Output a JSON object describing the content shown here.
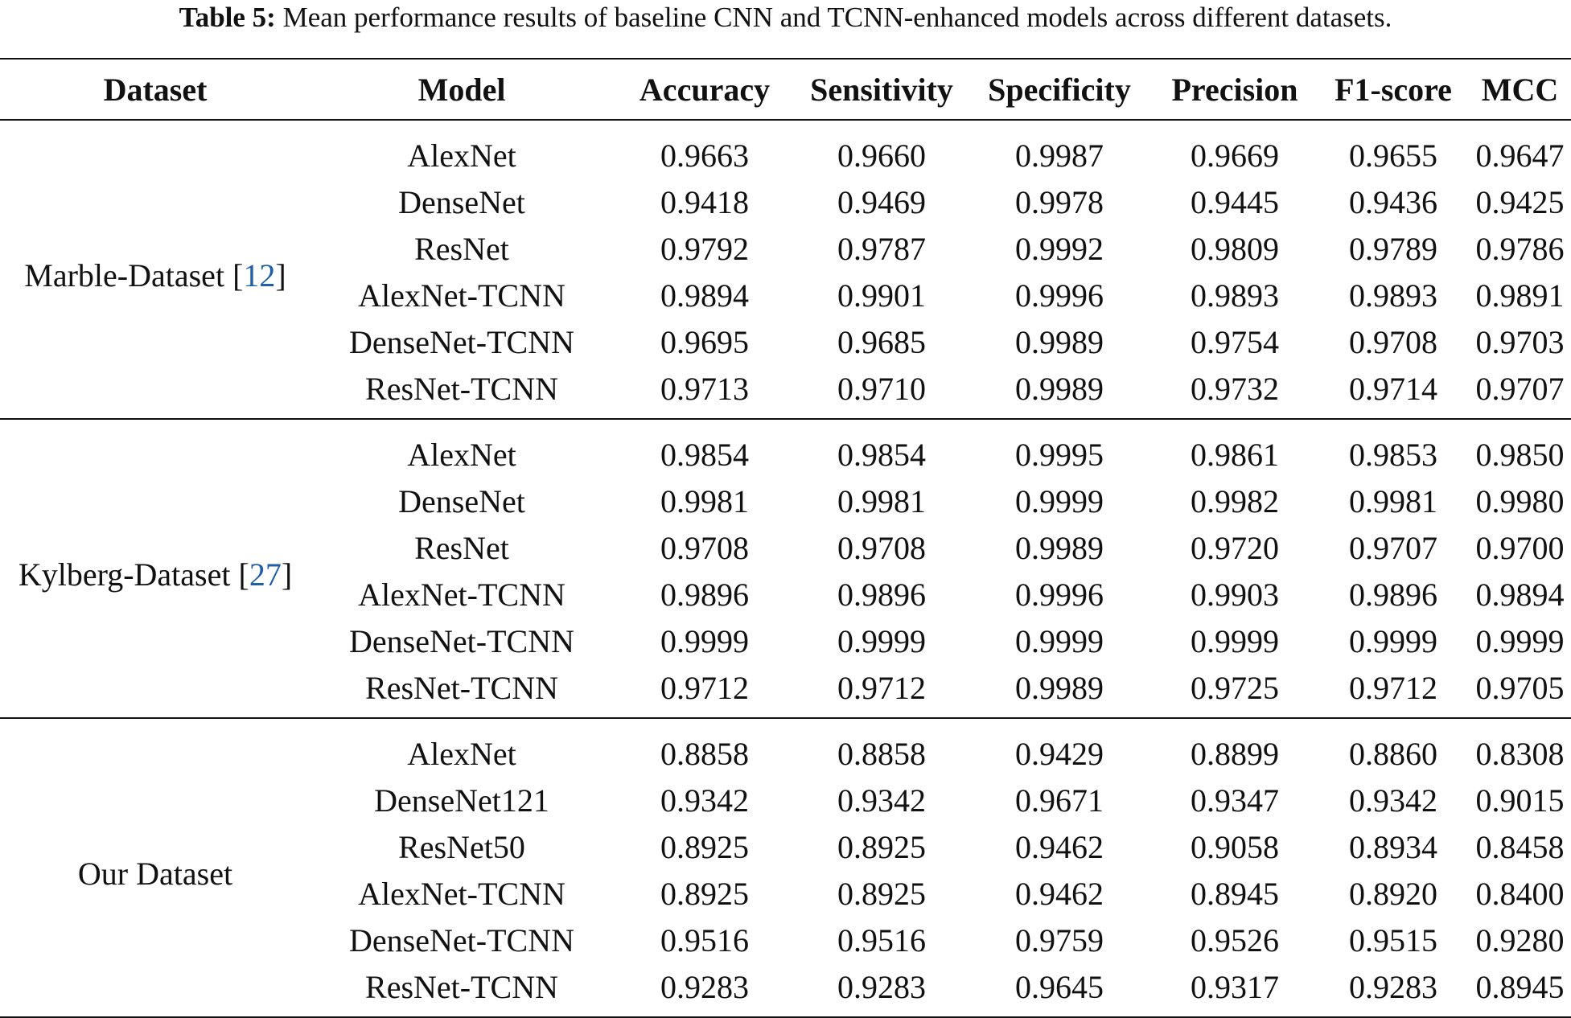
{
  "caption": {
    "label": "Table 5:",
    "text": "Mean performance results of baseline CNN and TCNN-enhanced models across different datasets."
  },
  "columns": [
    "Dataset",
    "Model",
    "Accuracy",
    "Sensitivity",
    "Specificity",
    "Precision",
    "F1-score",
    "MCC"
  ],
  "groups": [
    {
      "dataset": "Marble-Dataset",
      "ref": "12",
      "rows": [
        {
          "model": "AlexNet",
          "values": [
            "0.9663",
            "0.9660",
            "0.9987",
            "0.9669",
            "0.9655",
            "0.9647"
          ]
        },
        {
          "model": "DenseNet",
          "values": [
            "0.9418",
            "0.9469",
            "0.9978",
            "0.9445",
            "0.9436",
            "0.9425"
          ]
        },
        {
          "model": "ResNet",
          "values": [
            "0.9792",
            "0.9787",
            "0.9992",
            "0.9809",
            "0.9789",
            "0.9786"
          ]
        },
        {
          "model": "AlexNet-TCNN",
          "values": [
            "0.9894",
            "0.9901",
            "0.9996",
            "0.9893",
            "0.9893",
            "0.9891"
          ]
        },
        {
          "model": "DenseNet-TCNN",
          "values": [
            "0.9695",
            "0.9685",
            "0.9989",
            "0.9754",
            "0.9708",
            "0.9703"
          ]
        },
        {
          "model": "ResNet-TCNN",
          "values": [
            "0.9713",
            "0.9710",
            "0.9989",
            "0.9732",
            "0.9714",
            "0.9707"
          ]
        }
      ]
    },
    {
      "dataset": "Kylberg-Dataset",
      "ref": "27",
      "rows": [
        {
          "model": "AlexNet",
          "values": [
            "0.9854",
            "0.9854",
            "0.9995",
            "0.9861",
            "0.9853",
            "0.9850"
          ]
        },
        {
          "model": "DenseNet",
          "values": [
            "0.9981",
            "0.9981",
            "0.9999",
            "0.9982",
            "0.9981",
            "0.9980"
          ]
        },
        {
          "model": "ResNet",
          "values": [
            "0.9708",
            "0.9708",
            "0.9989",
            "0.9720",
            "0.9707",
            "0.9700"
          ]
        },
        {
          "model": "AlexNet-TCNN",
          "values": [
            "0.9896",
            "0.9896",
            "0.9996",
            "0.9903",
            "0.9896",
            "0.9894"
          ]
        },
        {
          "model": "DenseNet-TCNN",
          "values": [
            "0.9999",
            "0.9999",
            "0.9999",
            "0.9999",
            "0.9999",
            "0.9999"
          ]
        },
        {
          "model": "ResNet-TCNN",
          "values": [
            "0.9712",
            "0.9712",
            "0.9989",
            "0.9725",
            "0.9712",
            "0.9705"
          ]
        }
      ]
    },
    {
      "dataset": "Our Dataset",
      "ref": "",
      "rows": [
        {
          "model": "AlexNet",
          "values": [
            "0.8858",
            "0.8858",
            "0.9429",
            "0.8899",
            "0.8860",
            "0.8308"
          ]
        },
        {
          "model": "DenseNet121",
          "values": [
            "0.9342",
            "0.9342",
            "0.9671",
            "0.9347",
            "0.9342",
            "0.9015"
          ]
        },
        {
          "model": "ResNet50",
          "values": [
            "0.8925",
            "0.8925",
            "0.9462",
            "0.9058",
            "0.8934",
            "0.8458"
          ]
        },
        {
          "model": "AlexNet-TCNN",
          "values": [
            "0.8925",
            "0.8925",
            "0.9462",
            "0.8945",
            "0.8920",
            "0.8400"
          ]
        },
        {
          "model": "DenseNet-TCNN",
          "values": [
            "0.9516",
            "0.9516",
            "0.9759",
            "0.9526",
            "0.9515",
            "0.9280"
          ]
        },
        {
          "model": "ResNet-TCNN",
          "values": [
            "0.9283",
            "0.9283",
            "0.9645",
            "0.9317",
            "0.9283",
            "0.8945"
          ]
        }
      ]
    }
  ]
}
